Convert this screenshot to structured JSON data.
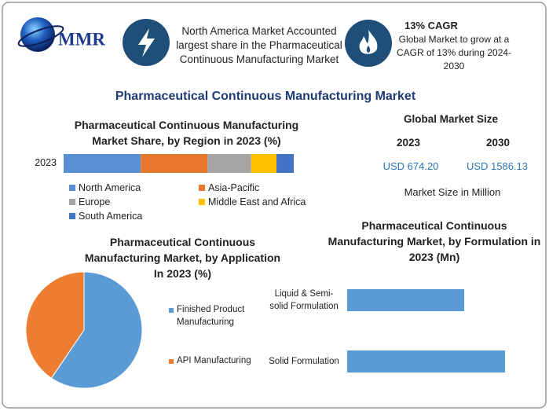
{
  "header": {
    "logo_text": "MMR",
    "highlight_1": "North America Market Accounted largest share in the Pharmaceutical Continuous Manufacturing Market",
    "highlight_2_title": "13% CAGR",
    "highlight_2_text": "Global Market to grow at a CAGR of 13% during 2024-2030"
  },
  "title": "Pharmaceutical Continuous Manufacturing Market",
  "market_size": {
    "title": "Global Market Size",
    "years": [
      "2023",
      "2030"
    ],
    "values": [
      "USD 674.20",
      "USD 1586.13"
    ],
    "note": "Market Size in Million"
  },
  "chart_data": [
    {
      "type": "stacked-bar-h",
      "title": "Pharmaceutical Continuous Manufacturing Market Share, by Region in 2023 (%)",
      "categories": [
        "2023"
      ],
      "series": [
        {
          "name": "North America",
          "color": "#5b8fd4",
          "values": [
            33.5
          ]
        },
        {
          "name": "Asia-Pacific",
          "color": "#e8772e",
          "values": [
            29
          ]
        },
        {
          "name": "Europe",
          "color": "#a5a5a5",
          "values": [
            19
          ]
        },
        {
          "name": "Middle East and Africa",
          "color": "#ffc000",
          "values": [
            11
          ]
        },
        {
          "name": "South America",
          "color": "#4472c4",
          "values": [
            7.5
          ]
        }
      ]
    },
    {
      "type": "pie",
      "title": "Pharmaceutical Continuous Manufacturing Market, by Application In 2023 (%)",
      "categories": [
        "Finished Product Manufacturing",
        "API Manufacturing"
      ],
      "values": [
        59.5,
        40.5
      ],
      "colors": [
        "#5b9bd5",
        "#ed7d31"
      ]
    },
    {
      "type": "bar-h",
      "title": "Pharmaceutical Continuous Manufacturing Market, by Formulation in 2023 (Mn)",
      "categories": [
        "Liquid & Semi-solid Formulation",
        "Solid Formulation"
      ],
      "values": [
        287,
        387
      ],
      "color": "#5b9bd5"
    }
  ]
}
